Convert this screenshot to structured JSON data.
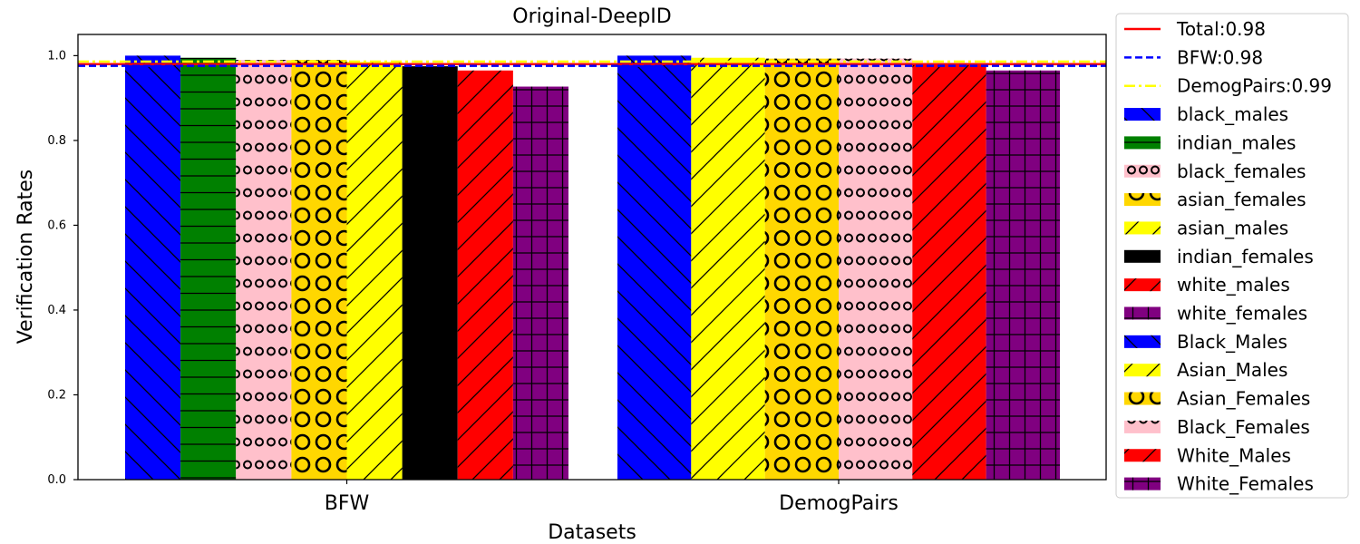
{
  "chart_data": {
    "type": "bar",
    "title": "Original-DeepID",
    "xlabel": "Datasets",
    "ylabel": "Verification Rates",
    "ylim": [
      0,
      1.05
    ],
    "yticks": [
      "0.0",
      "0.2",
      "0.4",
      "0.6",
      "0.8",
      "1.0"
    ],
    "grid": false,
    "legend_position": "outside-right",
    "groups": [
      {
        "category": "BFW",
        "bars": [
          {
            "name": "black_males",
            "value": 1.0,
            "color": "#0000ff",
            "pattern": "backslash"
          },
          {
            "name": "indian_males",
            "value": 0.995,
            "color": "#008000",
            "pattern": "horizontal"
          },
          {
            "name": "black_females",
            "value": 0.99,
            "color": "#ffc0cb",
            "pattern": "small-circles"
          },
          {
            "name": "asian_females",
            "value": 0.99,
            "color": "#ffd700",
            "pattern": "big-circles"
          },
          {
            "name": "asian_males",
            "value": 0.985,
            "color": "#ffff00",
            "pattern": "slash"
          },
          {
            "name": "indian_females",
            "value": 0.975,
            "color": "#000000",
            "pattern": "none"
          },
          {
            "name": "white_males",
            "value": 0.965,
            "color": "#ff0000",
            "pattern": "slash"
          },
          {
            "name": "white_females",
            "value": 0.927,
            "color": "#800080",
            "pattern": "grid"
          }
        ]
      },
      {
        "category": "DemogPairs",
        "bars": [
          {
            "name": "Black_Males",
            "value": 1.0,
            "color": "#0000ff",
            "pattern": "backslash"
          },
          {
            "name": "Asian_Males",
            "value": 0.995,
            "color": "#ffff00",
            "pattern": "slash"
          },
          {
            "name": "Asian_Females",
            "value": 0.993,
            "color": "#ffd700",
            "pattern": "big-circles"
          },
          {
            "name": "Black_Females",
            "value": 0.993,
            "color": "#ffc0cb",
            "pattern": "small-circles"
          },
          {
            "name": "White_Males",
            "value": 0.98,
            "color": "#ff0000",
            "pattern": "slash"
          },
          {
            "name": "White_Females",
            "value": 0.965,
            "color": "#800080",
            "pattern": "grid"
          }
        ]
      }
    ],
    "reference_lines": [
      {
        "label": "Total:0.98",
        "value": 0.98,
        "color": "#ff0000",
        "style": "solid"
      },
      {
        "label": "BFW:0.98",
        "value": 0.976,
        "color": "#0000ff",
        "style": "dashed"
      },
      {
        "label": "DemogPairs:0.99",
        "value": 0.986,
        "color": "#ffff00",
        "style": "dashdot"
      }
    ]
  }
}
